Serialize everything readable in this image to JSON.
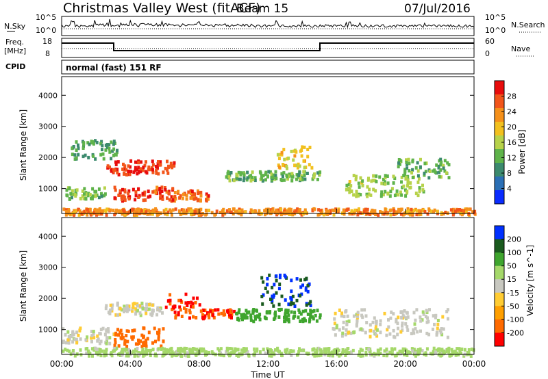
{
  "header": {
    "station": "Christmas Valley West (fitACF)",
    "beam": "Beam 15",
    "date": "07/Jul/2016"
  },
  "nsky_panel": {
    "left_label": "N.Sky",
    "ticks_left": [
      "10^5",
      "10^0"
    ],
    "ticks_right": [
      "10^5",
      "10^0"
    ],
    "right_label": "N.Search"
  },
  "freq_panel": {
    "left_label_1": "Freq.",
    "left_label_2": "[MHz]",
    "ticks_left": [
      "18",
      "8"
    ],
    "ticks_right": [
      "60",
      "0"
    ],
    "right_label": "Nave"
  },
  "cpid_panel": {
    "label": "CPID",
    "text": "normal (fast) 151 RF"
  },
  "x_axis": {
    "label": "Time UT",
    "ticks": [
      "00:00",
      "04:00",
      "08:00",
      "12:00",
      "16:00",
      "20:00",
      "00:00"
    ]
  },
  "colors": {
    "power": [
      "#0a2cff",
      "#2b6fb5",
      "#3c8a6e",
      "#5fb34a",
      "#b7d24a",
      "#f2c01e",
      "#f5901a",
      "#f2551a",
      "#e80c0c"
    ],
    "velocity": [
      "#ff0000",
      "#ff6a00",
      "#ff9f00",
      "#ffcc33",
      "#c8c8c0",
      "#a5d86a",
      "#3fa52e",
      "#1a5a1e",
      "#0030ff"
    ]
  },
  "chart_data": [
    {
      "type": "heatmap",
      "panel": "power",
      "ylabel": "Slant Range [km]",
      "yticks": [
        "1000",
        "2000",
        "3000",
        "4000"
      ],
      "ylim": [
        200,
        4600
      ],
      "xlim": [
        "00:00",
        "24:00"
      ],
      "colorbar": {
        "label": "Power [dB]",
        "ticks": [
          "4",
          "8",
          "12",
          "16",
          "20",
          "24",
          "28"
        ]
      },
      "regions": [
        {
          "t0": 0.2,
          "t1": 2.5,
          "r0": 700,
          "r1": 1100,
          "v": 13
        },
        {
          "t0": 2.6,
          "t1": 6.5,
          "r0": 1500,
          "r1": 1950,
          "v": 27
        },
        {
          "t0": 3.0,
          "t1": 6.5,
          "r0": 650,
          "r1": 1100,
          "v": 26
        },
        {
          "t0": 6.5,
          "t1": 8.5,
          "r0": 650,
          "r1": 1000,
          "v": 24
        },
        {
          "t0": 0.5,
          "t1": 3.2,
          "r0": 2000,
          "r1": 2600,
          "v": 10
        },
        {
          "t0": 9.5,
          "t1": 15.0,
          "r0": 1300,
          "r1": 1600,
          "v": 12
        },
        {
          "t0": 12.5,
          "t1": 14.5,
          "r0": 1700,
          "r1": 2400,
          "v": 18
        },
        {
          "t0": 16.5,
          "t1": 21.0,
          "r0": 800,
          "r1": 1500,
          "v": 14
        },
        {
          "t0": 19.5,
          "t1": 22.5,
          "r0": 1400,
          "r1": 2000,
          "v": 12
        },
        {
          "t0": 0.0,
          "t1": 24.0,
          "r0": 200,
          "r1": 400,
          "v": 22
        }
      ]
    },
    {
      "type": "heatmap",
      "panel": "velocity",
      "ylabel": "Slant Range [km]",
      "yticks": [
        "1000",
        "2000",
        "3000",
        "4000"
      ],
      "ylim": [
        200,
        4600
      ],
      "xlim": [
        "00:00",
        "24:00"
      ],
      "colorbar": {
        "label": "Velocity [m s^-1]",
        "ticks": [
          "200",
          "100",
          "50",
          "15",
          "-15",
          "-50",
          "-100",
          "-200"
        ]
      },
      "regions": [
        {
          "t0": 0.0,
          "t1": 3.0,
          "r0": 600,
          "r1": 1100,
          "v": 0
        },
        {
          "t0": 2.5,
          "t1": 6.0,
          "r0": 1500,
          "r1": 1900,
          "v": 0
        },
        {
          "t0": 3.0,
          "t1": 6.0,
          "r0": 500,
          "r1": 1100,
          "v": -120
        },
        {
          "t0": 6.0,
          "t1": 8.0,
          "r0": 1400,
          "r1": 2200,
          "v": -200
        },
        {
          "t0": 8.0,
          "t1": 10.0,
          "r0": 1400,
          "r1": 1700,
          "v": -200
        },
        {
          "t0": 10.0,
          "t1": 15.0,
          "r0": 1300,
          "r1": 1700,
          "v": 70
        },
        {
          "t0": 11.5,
          "t1": 14.5,
          "r0": 1800,
          "r1": 2800,
          "v": 200
        },
        {
          "t0": 15.5,
          "t1": 22.5,
          "r0": 800,
          "r1": 1700,
          "v": 0
        },
        {
          "t0": 0.0,
          "t1": 24.0,
          "r0": 200,
          "r1": 450,
          "v": 30
        }
      ]
    }
  ]
}
